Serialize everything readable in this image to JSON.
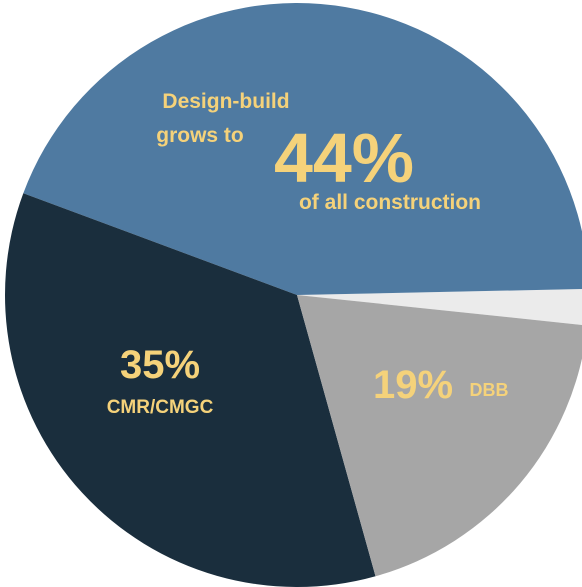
{
  "chart_data": {
    "type": "pie",
    "slices": [
      {
        "key": "design-build",
        "name": "Design-build",
        "value": 44,
        "color": "#4f7aa1"
      },
      {
        "key": "cmr",
        "name": "CMR/CMGC",
        "value": 35,
        "color": "#1a2e3d"
      },
      {
        "key": "dbb",
        "name": "DBB",
        "value": 19,
        "color": "#a6a6a6"
      },
      {
        "key": "other",
        "name": "",
        "value": 2,
        "color": "#ebebeb"
      }
    ],
    "label_color": "#f5d27a",
    "labels": {
      "design_build": {
        "line1": "Design-build",
        "line2": "grows to",
        "percent": "44%",
        "line3": "of all construction"
      },
      "cmr": {
        "percent": "35%",
        "name": "CMR/CMGC"
      },
      "dbb": {
        "percent": "19%",
        "name": "DBB"
      }
    }
  }
}
